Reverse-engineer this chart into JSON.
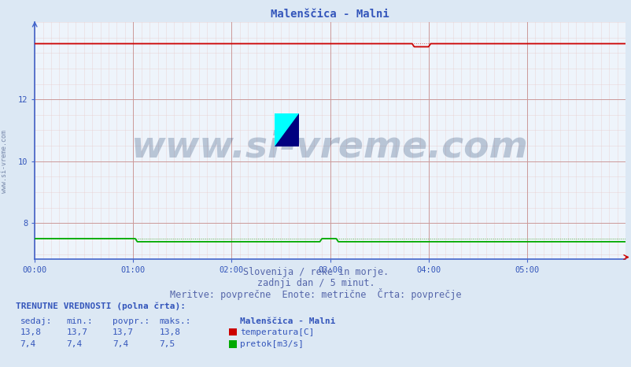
{
  "title": "Malenščica - Malni",
  "bg_color": "#dce8f4",
  "plot_bg_color": "#eef4fb",
  "grid_color_major": "#cc9999",
  "grid_color_minor": "#e8cccc",
  "spine_color": "#4466cc",
  "title_color": "#3355bb",
  "title_fontsize": 10,
  "tick_label_color": "#3355bb",
  "xlim": [
    0,
    288
  ],
  "ylim": [
    6.85,
    14.5
  ],
  "yticks": [
    8,
    10,
    12
  ],
  "xtick_positions": [
    0,
    48,
    96,
    144,
    192,
    240,
    288
  ],
  "xtick_labels": [
    "00:00",
    "01:00",
    "02:00",
    "03:00",
    "04:00",
    "05:00",
    ""
  ],
  "temp_color": "#cc0000",
  "flow_color": "#00aa00",
  "temp_dot_color": "#dd4444",
  "flow_dot_color": "#44bb44",
  "watermark_text": "www.si-vreme.com",
  "watermark_color": "#1a3a6a",
  "watermark_alpha": 0.25,
  "watermark_fontsize": 34,
  "footer_line1": "Slovenija / reke in morje.",
  "footer_line2": "zadnji dan / 5 minut.",
  "footer_line3": "Meritve: povprečne  Enote: metrične  Črta: povprečje",
  "footer_color": "#5566aa",
  "footer_fontsize": 8.5,
  "table_header": "TRENUTNE VREDNOSTI (polna črta):",
  "table_col_headers": [
    "sedaj:",
    "min.:",
    "povpr.:",
    "maks.:"
  ],
  "table_station": "Malenščica - Malni",
  "table_temp_values": [
    "13,8",
    "13,7",
    "13,7",
    "13,8"
  ],
  "table_flow_values": [
    "7,4",
    "7,4",
    "7,4",
    "7,5"
  ],
  "table_temp_label": "temperatura[C]",
  "table_flow_label": "pretok[m3/s]",
  "table_color": "#3355bb",
  "table_fontsize": 8,
  "side_text": "www.si-vreme.com",
  "side_color": "#7788aa",
  "side_fontsize": 6
}
